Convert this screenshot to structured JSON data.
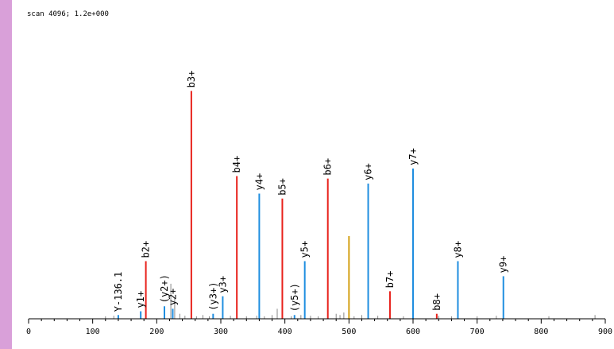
{
  "scan_label": "scan 4096; 1.2e+000",
  "colors": {
    "accent_bar": "#d9a0d9",
    "b_ion": "#e8221c",
    "y_ion": "#1f8ee0",
    "precursor": "#d4a017",
    "noise": "#888888",
    "axis": "#000000"
  },
  "chart_data": {
    "type": "bar",
    "title": "",
    "xlabel": "",
    "ylabel": "",
    "xlim": [
      0,
      900
    ],
    "ylim": [
      0,
      1.0
    ],
    "x_ticks": [
      0,
      100,
      200,
      300,
      400,
      500,
      600,
      700,
      800,
      900
    ],
    "tick_labels": [
      "0",
      "100",
      "200",
      "300",
      "400",
      "500",
      "600",
      "700",
      "800",
      "900"
    ],
    "peaks": [
      {
        "label": "y1+",
        "mz": 175,
        "intensity": 0.03,
        "ion": "y"
      },
      {
        "label": "b2+",
        "mz": 183,
        "intensity": 0.23,
        "ion": "b"
      },
      {
        "label": "b3+",
        "mz": 254,
        "intensity": 0.91,
        "ion": "b"
      },
      {
        "label": "y3+",
        "mz": 303,
        "intensity": 0.09,
        "ion": "y"
      },
      {
        "label": "b4+",
        "mz": 325,
        "intensity": 0.57,
        "ion": "b"
      },
      {
        "label": "y4+",
        "mz": 360,
        "intensity": 0.5,
        "ion": "y"
      },
      {
        "label": "b5+",
        "mz": 396,
        "intensity": 0.48,
        "ion": "b"
      },
      {
        "label": "y5+",
        "mz": 431,
        "intensity": 0.23,
        "ion": "y"
      },
      {
        "label": "b6+",
        "mz": 467,
        "intensity": 0.56,
        "ion": "b"
      },
      {
        "label": "y6+",
        "mz": 530,
        "intensity": 0.54,
        "ion": "y"
      },
      {
        "label": "b7+",
        "mz": 564,
        "intensity": 0.11,
        "ion": "b"
      },
      {
        "label": "y7+",
        "mz": 600,
        "intensity": 0.6,
        "ion": "y"
      },
      {
        "label": "b8+",
        "mz": 637,
        "intensity": 0.02,
        "ion": "b"
      },
      {
        "label": "y8+",
        "mz": 670,
        "intensity": 0.23,
        "ion": "y"
      },
      {
        "label": "y9+",
        "mz": 741,
        "intensity": 0.17,
        "ion": "y"
      },
      {
        "label": "(y2+)",
        "mz": 212,
        "intensity": 0.05,
        "ion": "y"
      },
      {
        "label": "y2+",
        "mz": 225,
        "intensity": 0.04,
        "ion": "y"
      },
      {
        "label": "(y3+)",
        "mz": 288,
        "intensity": 0.02,
        "ion": "y"
      },
      {
        "label": "(y5+)",
        "mz": 415,
        "intensity": 0.015,
        "ion": "y"
      },
      {
        "label": "Y-136.1",
        "mz": 140,
        "intensity": 0.015,
        "ion": "y"
      },
      {
        "label": "",
        "mz": 500,
        "intensity": 0.33,
        "ion": "precursor"
      }
    ],
    "noise_peaks": [
      {
        "mz": 120,
        "intensity": 0.01
      },
      {
        "mz": 133,
        "intensity": 0.012
      },
      {
        "mz": 222,
        "intensity": 0.14
      },
      {
        "mz": 228,
        "intensity": 0.08
      },
      {
        "mz": 236,
        "intensity": 0.02
      },
      {
        "mz": 244,
        "intensity": 0.012
      },
      {
        "mz": 262,
        "intensity": 0.01
      },
      {
        "mz": 272,
        "intensity": 0.015
      },
      {
        "mz": 282,
        "intensity": 0.01
      },
      {
        "mz": 315,
        "intensity": 0.012
      },
      {
        "mz": 340,
        "intensity": 0.01
      },
      {
        "mz": 356,
        "intensity": 0.012
      },
      {
        "mz": 368,
        "intensity": 0.01
      },
      {
        "mz": 380,
        "intensity": 0.015
      },
      {
        "mz": 388,
        "intensity": 0.04
      },
      {
        "mz": 410,
        "intensity": 0.01
      },
      {
        "mz": 425,
        "intensity": 0.015
      },
      {
        "mz": 440,
        "intensity": 0.012
      },
      {
        "mz": 452,
        "intensity": 0.01
      },
      {
        "mz": 480,
        "intensity": 0.02
      },
      {
        "mz": 486,
        "intensity": 0.015
      },
      {
        "mz": 492,
        "intensity": 0.025
      },
      {
        "mz": 508,
        "intensity": 0.01
      },
      {
        "mz": 520,
        "intensity": 0.015
      },
      {
        "mz": 545,
        "intensity": 0.012
      },
      {
        "mz": 585,
        "intensity": 0.01
      },
      {
        "mz": 640,
        "intensity": 0.012
      },
      {
        "mz": 660,
        "intensity": 0.01
      },
      {
        "mz": 700,
        "intensity": 0.01
      },
      {
        "mz": 730,
        "intensity": 0.012
      },
      {
        "mz": 812,
        "intensity": 0.01
      },
      {
        "mz": 884,
        "intensity": 0.015
      }
    ]
  }
}
